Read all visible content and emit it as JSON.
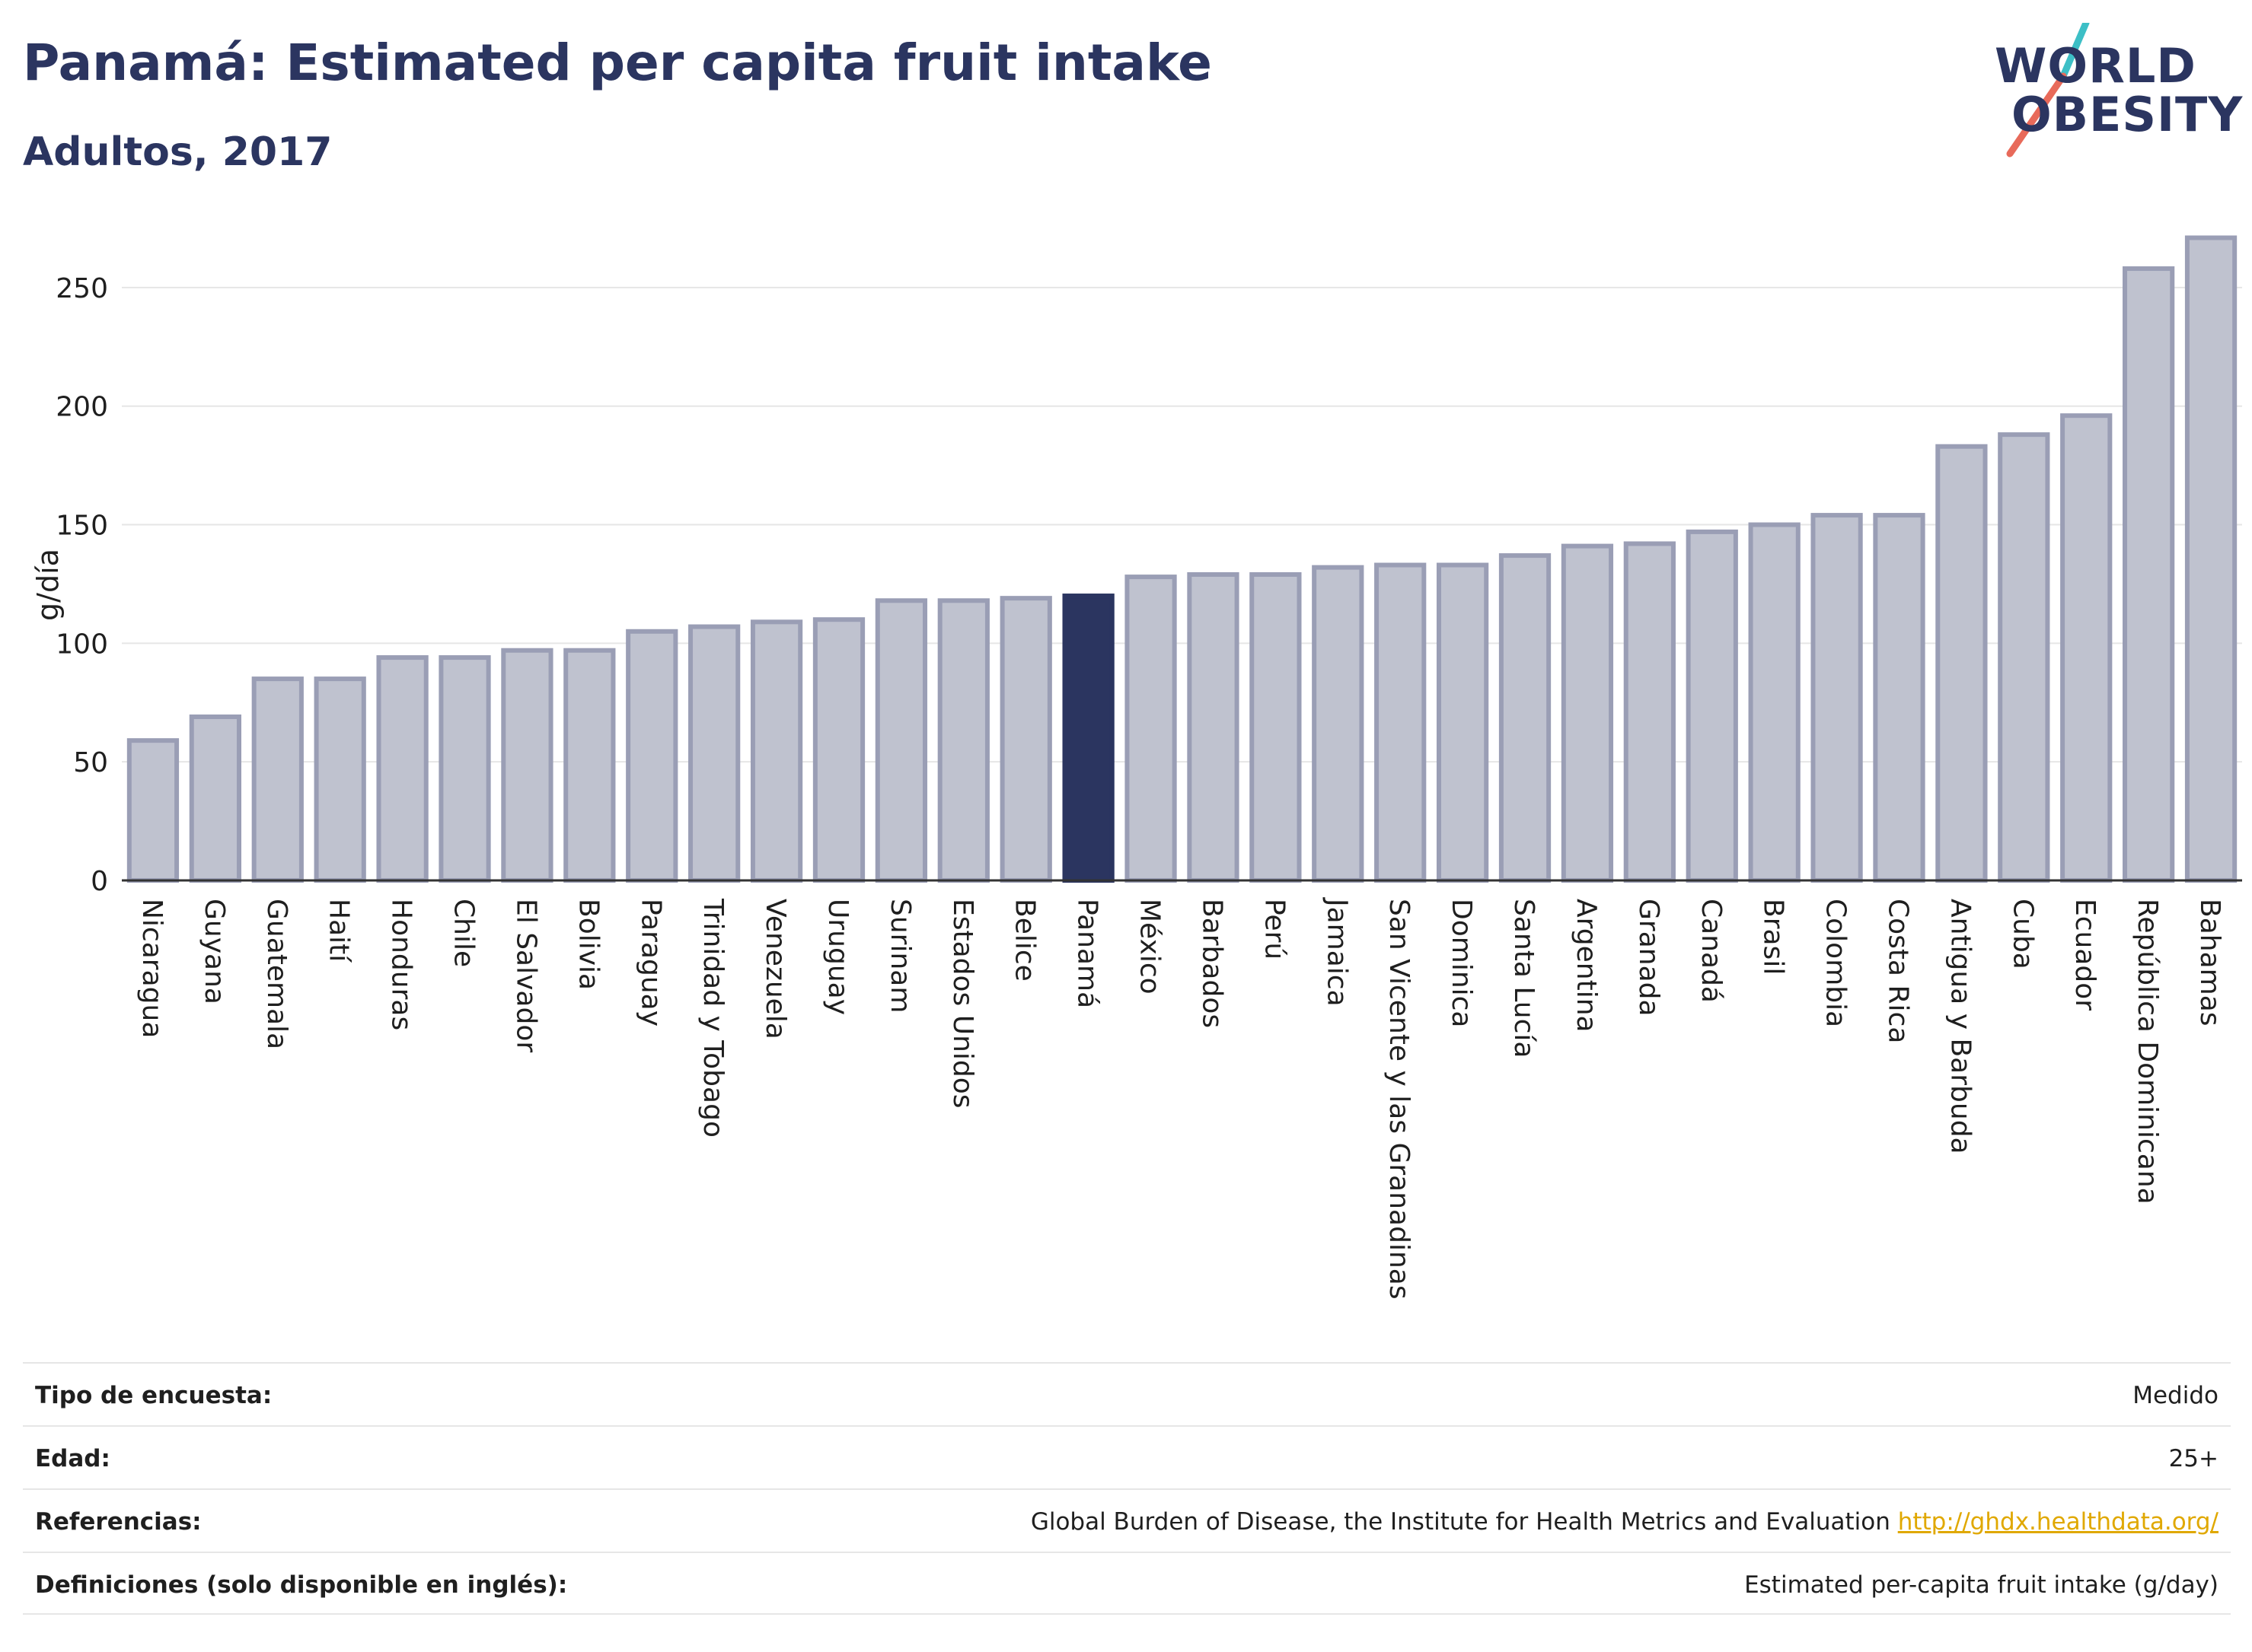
{
  "header": {
    "title": "Panamá: Estimated per capita fruit intake",
    "subtitle": "Adultos, 2017"
  },
  "logo": {
    "line1": "WORLD",
    "line2": "OBESITY",
    "colors": {
      "text": "#2b3560",
      "slash_top": "#3dbfc6",
      "slash_bottom": "#e86a5a"
    }
  },
  "colors": {
    "bar_fill": "#bfc2cf",
    "bar_stroke": "#9a9eb5",
    "highlight": "#2b3560",
    "grid": "#e6e6e6",
    "axis": "#333333"
  },
  "chart_data": {
    "type": "bar",
    "title": "Panamá: Estimated per capita fruit intake",
    "subtitle": "Adultos, 2017",
    "xlabel": "",
    "ylabel": "g/día",
    "ylim": [
      0,
      275
    ],
    "yticks": [
      0,
      50,
      100,
      150,
      200,
      250
    ],
    "grid": true,
    "highlight": "Panamá",
    "categories": [
      "Nicaragua",
      "Guyana",
      "Guatemala",
      "Haití",
      "Honduras",
      "Chile",
      "El Salvador",
      "Bolivia",
      "Paraguay",
      "Trinidad y Tobago",
      "Venezuela",
      "Uruguay",
      "Surinam",
      "Estados Unidos",
      "Belice",
      "Panamá",
      "México",
      "Barbados",
      "Perú",
      "Jamaica",
      "San Vicente y las Granadinas",
      "Dominica",
      "Santa Lucía",
      "Argentina",
      "Granada",
      "Canadá",
      "Brasil",
      "Colombia",
      "Costa Rica",
      "Antigua y Barbuda",
      "Cuba",
      "Ecuador",
      "República Dominicana",
      "Bahamas"
    ],
    "values": [
      59,
      69,
      85,
      85,
      94,
      94,
      97,
      97,
      105,
      107,
      109,
      110,
      118,
      118,
      119,
      120,
      128,
      129,
      129,
      132,
      133,
      133,
      137,
      141,
      142,
      147,
      150,
      154,
      154,
      183,
      188,
      196,
      258,
      271
    ]
  },
  "info": [
    {
      "label": "Tipo de encuesta:",
      "value": "Medido"
    },
    {
      "label": "Edad:",
      "value": "25+"
    },
    {
      "label": "Referencias:",
      "value": "Global Burden of Disease, the Institute for Health Metrics and Evaluation ",
      "link": "http://ghdx.healthdata.org/"
    },
    {
      "label": "Definiciones (solo disponible en inglés):",
      "value": "Estimated per-capita fruit intake (g/day)"
    }
  ]
}
